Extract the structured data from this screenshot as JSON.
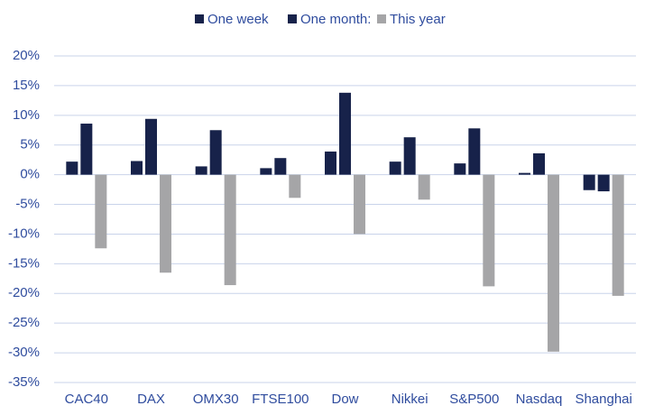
{
  "chart_data": {
    "type": "bar",
    "categories": [
      "CAC40",
      "DAX",
      "OMX30",
      "FTSE100",
      "Dow",
      "Nikkei",
      "S&P500",
      "Nasdaq",
      "Shanghai"
    ],
    "series": [
      {
        "name": "One week",
        "color": "#17224a",
        "values": [
          2.2,
          2.3,
          1.4,
          1.1,
          3.9,
          2.2,
          1.9,
          0.3,
          -2.6
        ]
      },
      {
        "name": "One month:",
        "color": "#17224a",
        "values": [
          8.6,
          9.4,
          7.5,
          2.8,
          13.8,
          6.3,
          7.8,
          3.6,
          -2.8
        ]
      },
      {
        "name": "This year",
        "color": "#a5a5a7",
        "values": [
          -12.4,
          -16.5,
          -18.6,
          -3.9,
          -10.0,
          -4.2,
          -18.8,
          -29.8,
          -20.4
        ]
      }
    ],
    "ylim": [
      -35,
      20
    ],
    "yticks": [
      {
        "value": -35,
        "label": "-35%"
      },
      {
        "value": -30,
        "label": "-30%"
      },
      {
        "value": -25,
        "label": "-25%"
      },
      {
        "value": -20,
        "label": "-20%"
      },
      {
        "value": -15,
        "label": "-15%"
      },
      {
        "value": -10,
        "label": "-10%"
      },
      {
        "value": -5,
        "label": "-5%"
      },
      {
        "value": 0,
        "label": "0%"
      },
      {
        "value": 5,
        "label": "5%"
      },
      {
        "value": 10,
        "label": "10%"
      },
      {
        "value": 15,
        "label": "15%"
      },
      {
        "value": 20,
        "label": "20%"
      }
    ],
    "grid": true,
    "legend": "top"
  }
}
